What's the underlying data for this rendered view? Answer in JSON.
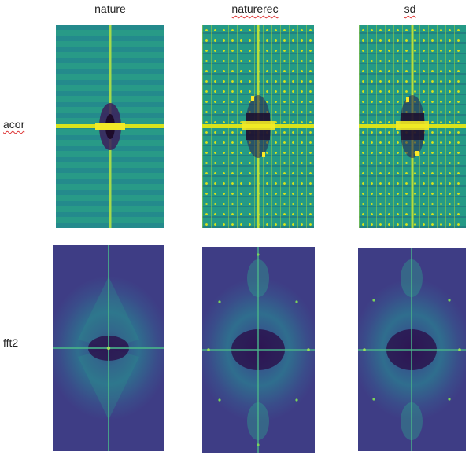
{
  "columns": [
    "nature",
    "naturerec",
    "sd"
  ],
  "rows": [
    "acor",
    "fft2"
  ],
  "colors": {
    "viridis_dark": "#440154",
    "viridis_blue": "#3b528b",
    "viridis_teal": "#21918c",
    "viridis_green": "#5ec962",
    "viridis_yellow": "#fde725"
  }
}
